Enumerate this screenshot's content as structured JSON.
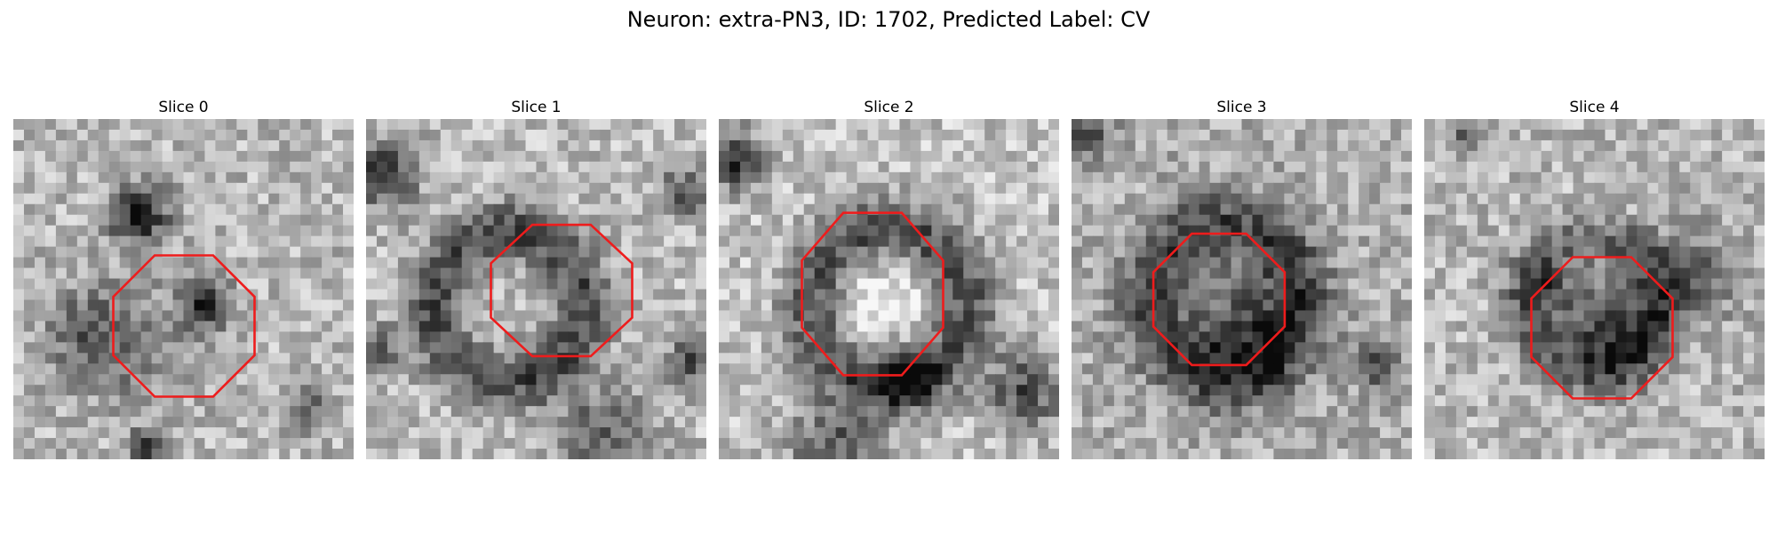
{
  "figure": {
    "title": "Neuron: extra-PN3, ID: 1702, Predicted Label: CV"
  },
  "panels": [
    {
      "title": "Slice 0"
    },
    {
      "title": "Slice 1"
    },
    {
      "title": "Slice 2"
    },
    {
      "title": "Slice 3"
    },
    {
      "title": "Slice 4"
    }
  ],
  "colors": {
    "background": "#ffffff",
    "outline": "#ee1c1c",
    "colormap": "grayscale"
  }
}
